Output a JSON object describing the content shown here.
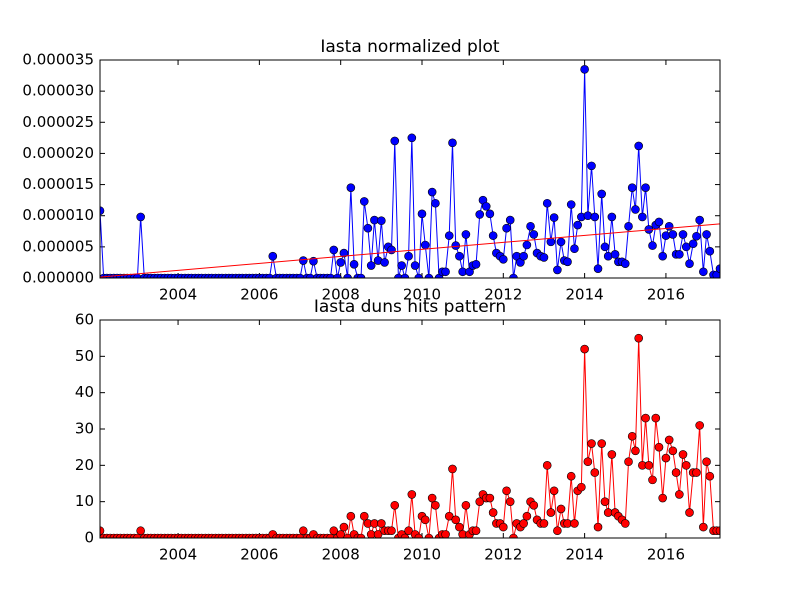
{
  "chart_data": [
    {
      "type": "line",
      "title": "Iasta normalized plot",
      "x": [
        2002.08,
        2002.17,
        2002.25,
        2002.33,
        2002.42,
        2002.5,
        2002.58,
        2002.67,
        2002.75,
        2002.83,
        2002.92,
        2003,
        2003.08,
        2003.17,
        2003.25,
        2003.33,
        2003.42,
        2003.5,
        2003.58,
        2003.67,
        2003.75,
        2003.83,
        2003.92,
        2004,
        2004.08,
        2004.17,
        2004.25,
        2004.33,
        2004.42,
        2004.5,
        2004.58,
        2004.67,
        2004.75,
        2004.83,
        2004.92,
        2005,
        2005.08,
        2005.17,
        2005.25,
        2005.33,
        2005.42,
        2005.5,
        2005.58,
        2005.67,
        2005.75,
        2005.83,
        2005.92,
        2006,
        2006.08,
        2006.17,
        2006.25,
        2006.33,
        2006.42,
        2006.5,
        2006.58,
        2006.67,
        2006.75,
        2006.83,
        2006.92,
        2007,
        2007.08,
        2007.17,
        2007.25,
        2007.33,
        2007.42,
        2007.5,
        2007.58,
        2007.67,
        2007.75,
        2007.83,
        2007.92,
        2008,
        2008.08,
        2008.17,
        2008.25,
        2008.33,
        2008.42,
        2008.5,
        2008.58,
        2008.67,
        2008.75,
        2008.83,
        2008.92,
        2009,
        2009.08,
        2009.17,
        2009.25,
        2009.33,
        2009.42,
        2009.5,
        2009.58,
        2009.67,
        2009.75,
        2009.83,
        2009.92,
        2010,
        2010.08,
        2010.17,
        2010.25,
        2010.33,
        2010.42,
        2010.5,
        2010.58,
        2010.67,
        2010.75,
        2010.83,
        2010.92,
        2011,
        2011.08,
        2011.17,
        2011.25,
        2011.33,
        2011.42,
        2011.5,
        2011.58,
        2011.67,
        2011.75,
        2011.83,
        2011.92,
        2012,
        2012.08,
        2012.17,
        2012.25,
        2012.33,
        2012.42,
        2012.5,
        2012.58,
        2012.67,
        2012.75,
        2012.83,
        2012.92,
        2013,
        2013.08,
        2013.17,
        2013.25,
        2013.33,
        2013.42,
        2013.5,
        2013.58,
        2013.67,
        2013.75,
        2013.83,
        2013.92,
        2014,
        2014.08,
        2014.17,
        2014.25,
        2014.33,
        2014.42,
        2014.5,
        2014.58,
        2014.67,
        2014.75,
        2014.83,
        2014.92,
        2015,
        2015.08,
        2015.17,
        2015.25,
        2015.33,
        2015.42,
        2015.5,
        2015.58,
        2015.67,
        2015.75,
        2015.83,
        2015.92,
        2016,
        2016.08,
        2016.17,
        2016.25,
        2016.33,
        2016.42,
        2016.5,
        2016.58,
        2016.67,
        2016.75,
        2016.83,
        2016.92,
        2017,
        2017.08,
        2017.17,
        2017.25,
        2017.33
      ],
      "series": [
        {
          "color": "#0000ff",
          "values": [
            1.08e-05,
            0,
            0,
            0,
            0,
            0,
            0,
            0,
            0,
            0,
            0,
            0,
            9.8e-06,
            0,
            0,
            0,
            0,
            0,
            0,
            0,
            0,
            0,
            0,
            0,
            0,
            0,
            0,
            0,
            0,
            0,
            0,
            0,
            0,
            0,
            0,
            0,
            0,
            0,
            0,
            0,
            0,
            0,
            0,
            0,
            0,
            0,
            0,
            0,
            0,
            0,
            0,
            3.5e-06,
            0,
            0,
            0,
            0,
            0,
            0,
            0,
            0,
            2.8e-06,
            0,
            0,
            2.7e-06,
            0,
            0,
            0,
            0,
            0,
            4.5e-06,
            0,
            2.5e-06,
            4e-06,
            0,
            1.45e-05,
            2.2e-06,
            0,
            0,
            1.23e-05,
            8e-06,
            2e-06,
            9.3e-06,
            2.8e-06,
            9.2e-06,
            2.5e-06,
            5e-06,
            4.5e-06,
            2.2e-05,
            0,
            2e-06,
            0,
            3.5e-06,
            2.25e-05,
            2e-06,
            0,
            1.03e-05,
            5.3e-06,
            0,
            1.38e-05,
            1.2e-05,
            0,
            1e-06,
            1e-06,
            6.8e-06,
            2.17e-05,
            5.2e-06,
            3.5e-06,
            1e-06,
            7e-06,
            1e-06,
            2e-06,
            2.2e-06,
            1.02e-05,
            1.25e-05,
            1.15e-05,
            1.03e-05,
            6.8e-06,
            4e-06,
            3.5e-06,
            3e-06,
            8e-06,
            9.3e-06,
            0,
            3.5e-06,
            2.5e-06,
            3.5e-06,
            5.3e-06,
            8.3e-06,
            7e-06,
            4e-06,
            3.5e-06,
            3.3e-06,
            1.2e-05,
            5.8e-06,
            9.7e-06,
            1.3e-06,
            5.8e-06,
            2.8e-06,
            2.6e-06,
            1.18e-05,
            4.7e-06,
            8.5e-06,
            9.8e-06,
            3.35e-05,
            1e-05,
            1.8e-05,
            9.8e-06,
            1.5e-06,
            1.35e-05,
            5e-06,
            3.5e-06,
            9.8e-06,
            3.8e-06,
            2.6e-06,
            2.6e-06,
            2.3e-06,
            8.3e-06,
            1.45e-05,
            1.1e-05,
            2.12e-05,
            9.8e-06,
            1.45e-05,
            7.8e-06,
            5.2e-06,
            8.5e-06,
            9e-06,
            3.5e-06,
            6.8e-06,
            8.3e-06,
            7e-06,
            3.8e-06,
            3.8e-06,
            7e-06,
            5e-06,
            2.3e-06,
            5.5e-06,
            6.7e-06,
            9.3e-06,
            1e-06,
            7e-06,
            4.3e-06,
            5e-07,
            5e-07,
            1.5e-06
          ]
        }
      ],
      "fit": {
        "color": "#ff0000",
        "x": [
          2002.08,
          2017.33
        ],
        "values": [
          1.5e-07,
          8.7e-06
        ]
      },
      "xlim": [
        2002.08,
        2017.33
      ],
      "xticks": [
        2004,
        2006,
        2008,
        2010,
        2012,
        2014,
        2016
      ],
      "ylim": [
        0,
        3.5e-05
      ],
      "yticks": [
        {
          "value": 0,
          "label": "0.000000"
        },
        {
          "value": 5e-06,
          "label": "0.000005"
        },
        {
          "value": 1e-05,
          "label": "0.000010"
        },
        {
          "value": 1.5e-05,
          "label": "0.000015"
        },
        {
          "value": 2e-05,
          "label": "0.000020"
        },
        {
          "value": 2.5e-05,
          "label": "0.000025"
        },
        {
          "value": 3e-05,
          "label": "0.000030"
        },
        {
          "value": 3.5e-05,
          "label": "0.000035"
        }
      ]
    },
    {
      "type": "line",
      "title": "Iasta duns hits pattern",
      "x": [
        2002.08,
        2002.17,
        2002.25,
        2002.33,
        2002.42,
        2002.5,
        2002.58,
        2002.67,
        2002.75,
        2002.83,
        2002.92,
        2003,
        2003.08,
        2003.17,
        2003.25,
        2003.33,
        2003.42,
        2003.5,
        2003.58,
        2003.67,
        2003.75,
        2003.83,
        2003.92,
        2004,
        2004.08,
        2004.17,
        2004.25,
        2004.33,
        2004.42,
        2004.5,
        2004.58,
        2004.67,
        2004.75,
        2004.83,
        2004.92,
        2005,
        2005.08,
        2005.17,
        2005.25,
        2005.33,
        2005.42,
        2005.5,
        2005.58,
        2005.67,
        2005.75,
        2005.83,
        2005.92,
        2006,
        2006.08,
        2006.17,
        2006.25,
        2006.33,
        2006.42,
        2006.5,
        2006.58,
        2006.67,
        2006.75,
        2006.83,
        2006.92,
        2007,
        2007.08,
        2007.17,
        2007.25,
        2007.33,
        2007.42,
        2007.5,
        2007.58,
        2007.67,
        2007.75,
        2007.83,
        2007.92,
        2008,
        2008.08,
        2008.17,
        2008.25,
        2008.33,
        2008.42,
        2008.5,
        2008.58,
        2008.67,
        2008.75,
        2008.83,
        2008.92,
        2009,
        2009.08,
        2009.17,
        2009.25,
        2009.33,
        2009.42,
        2009.5,
        2009.58,
        2009.67,
        2009.75,
        2009.83,
        2009.92,
        2010,
        2010.08,
        2010.17,
        2010.25,
        2010.33,
        2010.42,
        2010.5,
        2010.58,
        2010.67,
        2010.75,
        2010.83,
        2010.92,
        2011,
        2011.08,
        2011.17,
        2011.25,
        2011.33,
        2011.42,
        2011.5,
        2011.58,
        2011.67,
        2011.75,
        2011.83,
        2011.92,
        2012,
        2012.08,
        2012.17,
        2012.25,
        2012.33,
        2012.42,
        2012.5,
        2012.58,
        2012.67,
        2012.75,
        2012.83,
        2012.92,
        2013,
        2013.08,
        2013.17,
        2013.25,
        2013.33,
        2013.42,
        2013.5,
        2013.58,
        2013.67,
        2013.75,
        2013.83,
        2013.92,
        2014,
        2014.08,
        2014.17,
        2014.25,
        2014.33,
        2014.42,
        2014.5,
        2014.58,
        2014.67,
        2014.75,
        2014.83,
        2014.92,
        2015,
        2015.08,
        2015.17,
        2015.25,
        2015.33,
        2015.42,
        2015.5,
        2015.58,
        2015.67,
        2015.75,
        2015.83,
        2015.92,
        2016,
        2016.08,
        2016.17,
        2016.25,
        2016.33,
        2016.42,
        2016.5,
        2016.58,
        2016.67,
        2016.75,
        2016.83,
        2016.92,
        2017,
        2017.08,
        2017.17,
        2017.25,
        2017.33
      ],
      "series": [
        {
          "color": "#ff0000",
          "values": [
            2,
            0,
            0,
            0,
            0,
            0,
            0,
            0,
            0,
            0,
            0,
            0,
            2,
            0,
            0,
            0,
            0,
            0,
            0,
            0,
            0,
            0,
            0,
            0,
            0,
            0,
            0,
            0,
            0,
            0,
            0,
            0,
            0,
            0,
            0,
            0,
            0,
            0,
            0,
            0,
            0,
            0,
            0,
            0,
            0,
            0,
            0,
            0,
            0,
            0,
            0,
            1,
            0,
            0,
            0,
            0,
            0,
            0,
            0,
            0,
            2,
            0,
            0,
            1,
            0,
            0,
            0,
            0,
            0,
            2,
            0,
            1,
            3,
            0,
            6,
            1,
            0,
            0,
            6,
            4,
            1,
            4,
            1,
            4,
            2,
            2,
            2,
            9,
            0,
            1,
            0,
            2,
            12,
            1,
            0,
            6,
            5,
            0,
            11,
            9,
            0,
            1,
            1,
            6,
            19,
            5,
            3,
            1,
            9,
            1,
            2,
            2,
            10,
            12,
            11,
            11,
            7,
            4,
            4,
            3,
            13,
            10,
            0,
            4,
            3,
            4,
            6,
            10,
            9,
            5,
            4,
            4,
            20,
            7,
            13,
            2,
            8,
            4,
            4,
            17,
            4,
            13,
            14,
            52,
            21,
            26,
            18,
            3,
            26,
            10,
            7,
            23,
            7,
            6,
            5,
            4,
            21,
            28,
            24,
            55,
            20,
            33,
            20,
            16,
            33,
            25,
            11,
            22,
            27,
            24,
            18,
            12,
            23,
            20,
            7,
            18,
            18,
            31,
            3,
            21,
            17,
            2,
            2,
            2
          ]
        }
      ],
      "xlim": [
        2002.08,
        2017.33
      ],
      "xticks": [
        2004,
        2006,
        2008,
        2010,
        2012,
        2014,
        2016
      ],
      "ylim": [
        0,
        60
      ],
      "yticks": [
        0,
        10,
        20,
        30,
        40,
        50,
        60
      ]
    }
  ]
}
